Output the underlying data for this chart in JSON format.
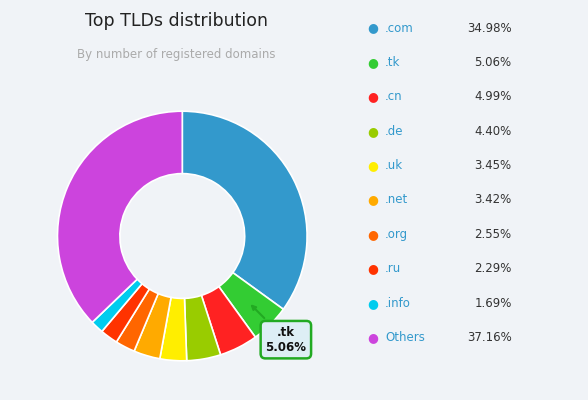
{
  "title": "Top TLDs distribution",
  "subtitle": "By number of registered domains",
  "labels": [
    ".com",
    ".tk",
    ".cn",
    ".de",
    ".uk",
    ".net",
    ".org",
    ".ru",
    ".info",
    "Others"
  ],
  "values": [
    34.98,
    5.06,
    4.99,
    4.4,
    3.45,
    3.42,
    2.55,
    2.29,
    1.69,
    37.16
  ],
  "colors": [
    "#3399cc",
    "#33cc33",
    "#ff2222",
    "#99cc00",
    "#ffee00",
    "#ffaa00",
    "#ff6600",
    "#ff3300",
    "#00ccee",
    "#cc44dd"
  ],
  "highlight_index": 1,
  "highlight_label": ".tk",
  "highlight_value": "5.06%",
  "legend_label_color": "#3399cc",
  "background_color": "#f0f3f7",
  "title_color": "#222222",
  "subtitle_color": "#aaaaaa",
  "legend_value_color": "#333333"
}
